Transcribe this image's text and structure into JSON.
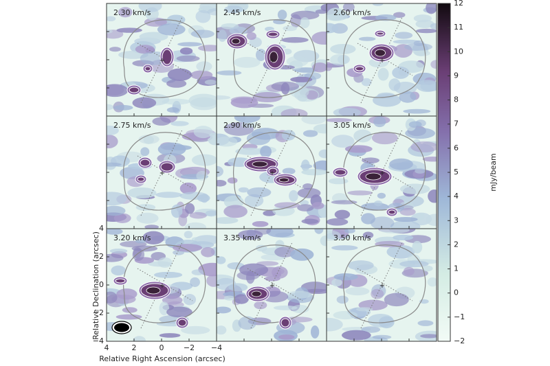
{
  "chart_data": {
    "type": "heatmap",
    "panels": [
      "2.30 km/s",
      "2.45 km/s",
      "2.60 km/s",
      "2.75 km/s",
      "2.90 km/s",
      "3.05 km/s",
      "3.20 km/s",
      "3.35 km/s",
      "3.50 km/s"
    ],
    "xlabel": "Relative Right Ascension (arcsec)",
    "ylabel": "Relative Declination (arcsec)",
    "xlim": [
      4,
      -4
    ],
    "xticks": [
      4,
      2,
      0,
      {
        "value": -2,
        "label": "−2"
      },
      {
        "value": -4,
        "label": "−4"
      }
    ],
    "ylim": [
      -4,
      4
    ],
    "yticks": [
      {
        "value": -4,
        "label": "−4"
      },
      {
        "value": -2,
        "label": "−2"
      },
      0,
      2,
      4
    ],
    "colorbar": {
      "label": "mJy/beam",
      "lim": [
        -2,
        12
      ],
      "ticks": [
        {
          "value": -2,
          "label": "−2"
        },
        {
          "value": -1,
          "label": "−1"
        },
        0,
        1,
        2,
        3,
        4,
        5,
        6,
        7,
        8,
        9,
        10,
        11,
        12
      ]
    }
  }
}
